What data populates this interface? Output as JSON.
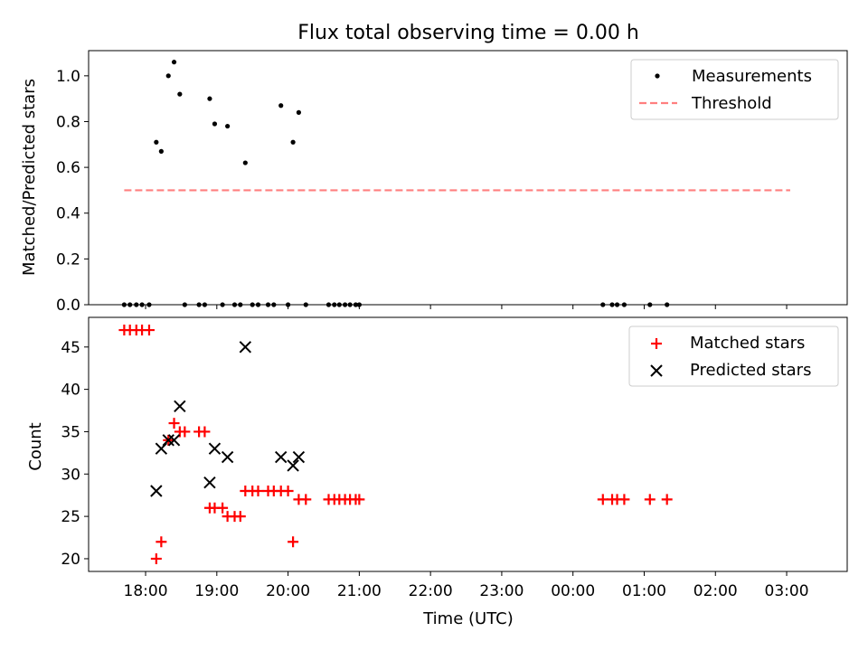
{
  "chart_data": [
    {
      "type": "scatter",
      "title": "Flux total observing time = 0.00 h",
      "xlabel": "",
      "ylabel": "Matched/Predicted stars",
      "xlim": [
        17.2,
        27.85
      ],
      "ylim": [
        0,
        1.11
      ],
      "yticks": [
        0.0,
        0.2,
        0.4,
        0.6,
        0.8,
        1.0
      ],
      "ytick_labels": [
        "0.0",
        "0.2",
        "0.4",
        "0.6",
        "0.8",
        "1.0"
      ],
      "legend": {
        "position": "top-right",
        "entries": [
          "Measurements",
          "Threshold"
        ]
      },
      "series": [
        {
          "name": "Measurements",
          "style": "dot",
          "color": "#000000",
          "x": [
            17.7,
            17.78,
            17.87,
            17.95,
            18.05,
            18.15,
            18.22,
            18.32,
            18.4,
            18.48,
            18.55,
            18.75,
            18.83,
            18.9,
            18.97,
            19.08,
            19.15,
            19.25,
            19.33,
            19.4,
            19.5,
            19.58,
            19.72,
            19.8,
            19.9,
            20.0,
            20.07,
            20.15,
            20.25,
            20.57,
            20.65,
            20.72,
            20.8,
            20.87,
            20.95,
            21.0,
            24.42,
            24.55,
            24.62,
            24.72,
            25.08,
            25.32
          ],
          "y": [
            0,
            0,
            0,
            0,
            0,
            0.71,
            0.67,
            1.0,
            1.06,
            0.92,
            0,
            0,
            0,
            0.9,
            0.79,
            0,
            0.78,
            0,
            0,
            0.62,
            0,
            0,
            0,
            0,
            0.87,
            0,
            0.71,
            0.84,
            0,
            0,
            0,
            0,
            0,
            0,
            0,
            0,
            0,
            0,
            0,
            0,
            0,
            0
          ]
        },
        {
          "name": "Threshold",
          "style": "dashed-line",
          "color": "#ff7f7f",
          "x": [
            17.7,
            27.05
          ],
          "y": [
            0.5,
            0.5
          ]
        }
      ]
    },
    {
      "type": "scatter",
      "title": "",
      "xlabel": "Time (UTC)",
      "ylabel": "Count",
      "xlim": [
        17.2,
        27.85
      ],
      "ylim": [
        18.5,
        48.5
      ],
      "yticks": [
        20,
        25,
        30,
        35,
        40,
        45
      ],
      "ytick_labels": [
        "20",
        "25",
        "30",
        "35",
        "40",
        "45"
      ],
      "xticks": [
        18,
        19,
        20,
        21,
        22,
        23,
        24,
        25,
        26,
        27
      ],
      "xtick_labels": [
        "18:00",
        "19:00",
        "20:00",
        "21:00",
        "22:00",
        "23:00",
        "00:00",
        "01:00",
        "02:00",
        "03:00"
      ],
      "legend": {
        "position": "top-right",
        "entries": [
          "Matched stars",
          "Predicted stars"
        ]
      },
      "series": [
        {
          "name": "Matched stars",
          "style": "plus",
          "color": "#ff0000",
          "x": [
            17.7,
            17.78,
            17.87,
            17.95,
            18.05,
            18.15,
            18.22,
            18.32,
            18.4,
            18.48,
            18.55,
            18.75,
            18.83,
            18.9,
            18.97,
            19.08,
            19.15,
            19.25,
            19.33,
            19.4,
            19.5,
            19.58,
            19.72,
            19.8,
            19.9,
            20.0,
            20.07,
            20.15,
            20.25,
            20.57,
            20.65,
            20.72,
            20.8,
            20.87,
            20.95,
            21.0,
            24.42,
            24.55,
            24.62,
            24.72,
            25.08,
            25.32
          ],
          "y": [
            47,
            47,
            47,
            47,
            47,
            20,
            22,
            34,
            36,
            35,
            35,
            35,
            35,
            26,
            26,
            26,
            25,
            25,
            25,
            28,
            28,
            28,
            28,
            28,
            28,
            28,
            22,
            27,
            27,
            27,
            27,
            27,
            27,
            27,
            27,
            27,
            27,
            27,
            27,
            27,
            27,
            27
          ]
        },
        {
          "name": "Predicted stars",
          "style": "x",
          "color": "#000000",
          "x": [
            18.15,
            18.22,
            18.32,
            18.4,
            18.48,
            18.9,
            18.97,
            19.15,
            19.4,
            19.9,
            20.07,
            20.15
          ],
          "y": [
            28,
            33,
            34,
            34,
            38,
            29,
            33,
            32,
            45,
            32,
            31,
            32
          ]
        }
      ]
    }
  ]
}
